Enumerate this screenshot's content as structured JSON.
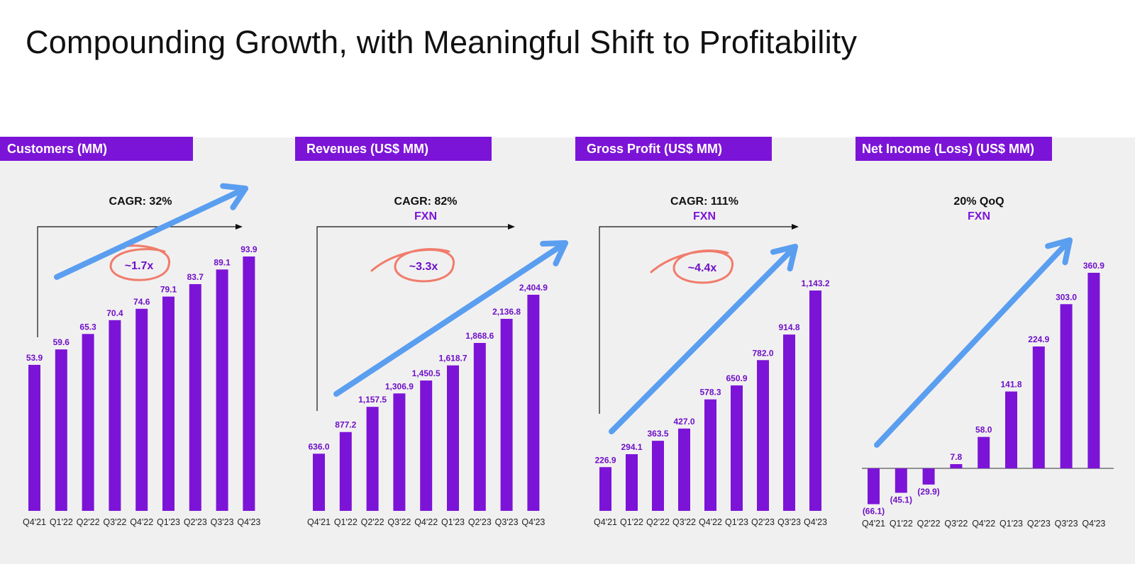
{
  "page": {
    "title": "Compounding Growth, with Meaningful Shift to Profitability"
  },
  "colors": {
    "bar": "#7C14D8",
    "label": "#6E10C8",
    "arrow": "#5A9EF0",
    "circle": "#F07C6C",
    "header_bg": "#7C14D8",
    "panel_bg": "#F1F0F0"
  },
  "panels": [
    {
      "header": "Customers (MM)",
      "stat_main": "CAGR: 32%",
      "stat_sub": "",
      "multiplier": "~1.7x"
    },
    {
      "header": "Revenues (US$ MM)",
      "stat_main": "CAGR: 82%",
      "stat_sub": "FXN",
      "multiplier": "~3.3x"
    },
    {
      "header": "Gross Profit (US$ MM)",
      "stat_main": "CAGR: 111%",
      "stat_sub": "FXN",
      "multiplier": "~4.4x"
    },
    {
      "header": "Net Income (Loss) (US$ MM)",
      "stat_main": "20% QoQ",
      "stat_sub": "FXN",
      "multiplier": ""
    }
  ],
  "chart_data": [
    {
      "type": "bar",
      "title": "Customers (MM)",
      "categories": [
        "Q4'21",
        "Q1'22",
        "Q2'22",
        "Q3'22",
        "Q4'22",
        "Q1'23",
        "Q2'23",
        "Q3'23",
        "Q4'23"
      ],
      "values": [
        53.9,
        59.6,
        65.3,
        70.4,
        74.6,
        79.1,
        83.7,
        89.1,
        93.9
      ],
      "labels": [
        "53.9",
        "59.6",
        "65.3",
        "70.4",
        "74.6",
        "79.1",
        "83.7",
        "89.1",
        "93.9"
      ]
    },
    {
      "type": "bar",
      "title": "Revenues (US$ MM)",
      "categories": [
        "Q4'21",
        "Q1'22",
        "Q2'22",
        "Q3'22",
        "Q4'22",
        "Q1'23",
        "Q2'23",
        "Q3'23",
        "Q4'23"
      ],
      "values": [
        636.0,
        877.2,
        1157.5,
        1306.9,
        1450.5,
        1618.7,
        1868.6,
        2136.8,
        2404.9
      ],
      "labels": [
        "636.0",
        "877.2",
        "1,157.5",
        "1,306.9",
        "1,450.5",
        "1,618.7",
        "1,868.6",
        "2,136.8",
        "2,404.9"
      ]
    },
    {
      "type": "bar",
      "title": "Gross Profit (US$ MM)",
      "categories": [
        "Q4'21",
        "Q1'22",
        "Q2'22",
        "Q3'22",
        "Q4'22",
        "Q1'23",
        "Q2'23",
        "Q3'23",
        "Q4'23"
      ],
      "values": [
        226.9,
        294.1,
        363.5,
        427.0,
        578.3,
        650.9,
        782.0,
        914.8,
        1143.2
      ],
      "labels": [
        "226.9",
        "294.1",
        "363.5",
        "427.0",
        "578.3",
        "650.9",
        "782.0",
        "914.8",
        "1,143.2"
      ]
    },
    {
      "type": "bar",
      "title": "Net Income (Loss) (US$ MM)",
      "categories": [
        "Q4'21",
        "Q1'22",
        "Q2'22",
        "Q3'22",
        "Q4'22",
        "Q1'23",
        "Q2'23",
        "Q3'23",
        "Q4'23"
      ],
      "values": [
        -66.1,
        -45.1,
        -29.9,
        7.8,
        58.0,
        141.8,
        224.9,
        303.0,
        360.9
      ],
      "labels": [
        "(66.1)",
        "(45.1)",
        "(29.9)",
        "7.8",
        "58.0",
        "141.8",
        "224.9",
        "303.0",
        "360.9"
      ]
    }
  ]
}
